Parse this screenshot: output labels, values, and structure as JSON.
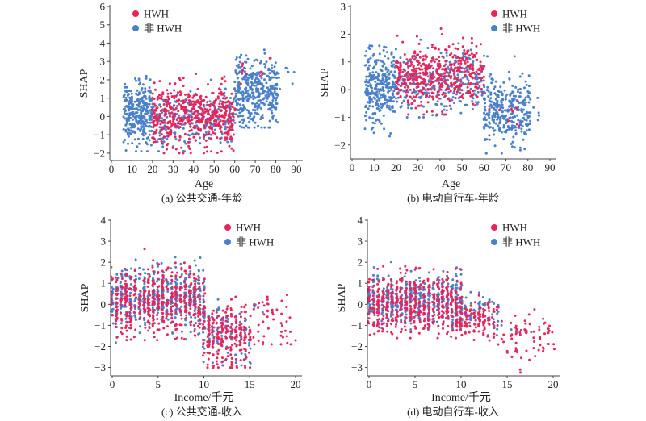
{
  "colors": {
    "HWH": "#e8245a",
    "non_HWH": "#4a80c9"
  },
  "chart_data": [
    {
      "type": "scatter",
      "caption": "(a) 公共交通-年龄",
      "xlabel": "Age",
      "ylabel": "SHAP",
      "xlim": [
        0,
        90
      ],
      "ylim": [
        -2.4,
        6
      ],
      "xticks": [
        "0",
        "10",
        "20",
        "30",
        "40",
        "50",
        "60",
        "70",
        "80",
        "90"
      ],
      "yticks": [
        "−2",
        "−1",
        "0",
        "1",
        "2",
        "3",
        "4",
        "5",
        "6"
      ],
      "legend": {
        "position": "top-left",
        "entries": [
          "HWH",
          "非 HWH"
        ]
      },
      "series": [
        {
          "name": "非 HWH",
          "color_key": "non_HWH",
          "clusters": [
            {
              "x": [
                6,
                20
              ],
              "y_mean": 0.2,
              "y_sd": 0.8,
              "y_range": [
                -1.9,
                3.8
              ],
              "n": 320
            },
            {
              "x": [
                20,
                60
              ],
              "y_mean": -0.2,
              "y_sd": 0.7,
              "y_range": [
                -1.9,
                2.0
              ],
              "n": 260
            },
            {
              "x": [
                60,
                81
              ],
              "y_mean": 1.3,
              "y_sd": 1.0,
              "y_range": [
                -0.6,
                5.6
              ],
              "n": 380
            },
            {
              "x": [
                81,
                89
              ],
              "y_mean": 2.2,
              "y_sd": 0.5,
              "y_range": [
                1.5,
                2.9
              ],
              "n": 8
            }
          ]
        },
        {
          "name": "HWH",
          "color_key": "HWH",
          "clusters": [
            {
              "x": [
                20,
                60
              ],
              "y_mean": 0.0,
              "y_sd": 0.8,
              "y_range": [
                -2.0,
                2.6
              ],
              "n": 520
            },
            {
              "x": [
                62,
                80
              ],
              "y_mean": 1.8,
              "y_sd": 0.9,
              "y_range": [
                0.8,
                3.9
              ],
              "n": 10
            }
          ]
        }
      ]
    },
    {
      "type": "scatter",
      "caption": "(b) 电动自行车-年龄",
      "xlabel": "Age",
      "ylabel": "SHAP",
      "xlim": [
        0,
        90
      ],
      "ylim": [
        -2.5,
        3
      ],
      "xticks": [
        "0",
        "10",
        "20",
        "30",
        "40",
        "50",
        "60",
        "70",
        "80",
        "90"
      ],
      "yticks": [
        "−2",
        "−1",
        "0",
        "1",
        "2",
        "3"
      ],
      "legend": {
        "position": "top-right",
        "entries": [
          "HWH",
          "非 HWH"
        ]
      },
      "series": [
        {
          "name": "非 HWH",
          "color_key": "non_HWH",
          "clusters": [
            {
              "x": [
                6,
                20
              ],
              "y_mean": 0.1,
              "y_sd": 0.7,
              "y_range": [
                -1.8,
                2.4
              ],
              "n": 300
            },
            {
              "x": [
                20,
                60
              ],
              "y_mean": 0.3,
              "y_sd": 0.55,
              "y_range": [
                -1.0,
                1.9
              ],
              "n": 300
            },
            {
              "x": [
                60,
                81
              ],
              "y_mean": -0.8,
              "y_sd": 0.6,
              "y_range": [
                -2.3,
                1.2
              ],
              "n": 340
            },
            {
              "x": [
                81,
                88
              ],
              "y_mean": -0.9,
              "y_sd": 0.6,
              "y_range": [
                -1.8,
                -0.3
              ],
              "n": 6
            }
          ]
        },
        {
          "name": "HWH",
          "color_key": "HWH",
          "clusters": [
            {
              "x": [
                20,
                60
              ],
              "y_mean": 0.5,
              "y_sd": 0.55,
              "y_range": [
                -0.9,
                2.2
              ],
              "n": 480
            },
            {
              "x": [
                62,
                80
              ],
              "y_mean": -0.9,
              "y_sd": 0.5,
              "y_range": [
                -2.0,
                0.2
              ],
              "n": 10
            }
          ]
        }
      ]
    },
    {
      "type": "scatter",
      "caption": "(c) 公共交通-收入",
      "xlabel": "Income/千元",
      "ylabel": "SHAP",
      "xlim": [
        0,
        20
      ],
      "ylim": [
        -3.4,
        4
      ],
      "xticks": [
        "0",
        "5",
        "10",
        "15",
        "20"
      ],
      "yticks": [
        "−3",
        "−2",
        "−1",
        "0",
        "1",
        "2",
        "3",
        "4"
      ],
      "legend": {
        "position": "top-right",
        "entries": [
          "HWH",
          "非 HWH"
        ]
      },
      "series": [
        {
          "name": "非 HWH",
          "color_key": "non_HWH",
          "clusters": [
            {
              "x": [
                0,
                10
              ],
              "y_mean": 0.3,
              "y_sd": 0.7,
              "y_range": [
                -2.0,
                3.7
              ],
              "n": 520
            },
            {
              "x": [
                10,
                15
              ],
              "y_mean": -1.5,
              "y_sd": 0.7,
              "y_range": [
                -2.9,
                1.2
              ],
              "n": 120
            },
            {
              "x": [
                15,
                19
              ],
              "y_mean": -0.5,
              "y_sd": 0.4,
              "y_range": [
                -1.0,
                0.0
              ],
              "n": 6
            }
          ]
        },
        {
          "name": "HWH",
          "color_key": "HWH",
          "clusters": [
            {
              "x": [
                0,
                10
              ],
              "y_mean": 0.2,
              "y_sd": 0.8,
              "y_range": [
                -1.7,
                3.4
              ],
              "n": 500
            },
            {
              "x": [
                10,
                15
              ],
              "y_mean": -1.6,
              "y_sd": 0.7,
              "y_range": [
                -3.0,
                1.7
              ],
              "n": 220
            },
            {
              "x": [
                15,
                20
              ],
              "y_mean": -0.8,
              "y_sd": 0.9,
              "y_range": [
                -1.9,
                2.4
              ],
              "n": 50
            }
          ]
        }
      ]
    },
    {
      "type": "scatter",
      "caption": "(d) 电动自行车-收入",
      "xlabel": "Income/千元",
      "ylabel": "SHAP",
      "xlim": [
        0,
        20
      ],
      "ylim": [
        -3.4,
        4
      ],
      "xticks": [
        "0",
        "5",
        "10",
        "15",
        "20"
      ],
      "yticks": [
        "−3",
        "−2",
        "−1",
        "0",
        "1",
        "2",
        "3",
        "4"
      ],
      "legend": {
        "position": "top-right",
        "entries": [
          "HWH",
          "非 HWH"
        ]
      },
      "series": [
        {
          "name": "非 HWH",
          "color_key": "non_HWH",
          "clusters": [
            {
              "x": [
                0,
                10
              ],
              "y_mean": 0.2,
              "y_sd": 0.55,
              "y_range": [
                -1.2,
                2.4
              ],
              "n": 480
            },
            {
              "x": [
                10,
                14
              ],
              "y_mean": -0.3,
              "y_sd": 0.5,
              "y_range": [
                -1.3,
                0.8
              ],
              "n": 60
            },
            {
              "x": [
                14,
                18
              ],
              "y_mean": -1.5,
              "y_sd": 0.4,
              "y_range": [
                -2.3,
                -1.0
              ],
              "n": 8
            }
          ]
        },
        {
          "name": "HWH",
          "color_key": "HWH",
          "clusters": [
            {
              "x": [
                0,
                10
              ],
              "y_mean": 0.0,
              "y_sd": 0.7,
              "y_range": [
                -1.6,
                3.1
              ],
              "n": 520
            },
            {
              "x": [
                10,
                14
              ],
              "y_mean": -0.7,
              "y_sd": 0.5,
              "y_range": [
                -1.8,
                0.8
              ],
              "n": 120
            },
            {
              "x": [
                14,
                20
              ],
              "y_mean": -1.6,
              "y_sd": 0.6,
              "y_range": [
                -3.5,
                -0.2
              ],
              "n": 70
            }
          ]
        }
      ]
    }
  ]
}
